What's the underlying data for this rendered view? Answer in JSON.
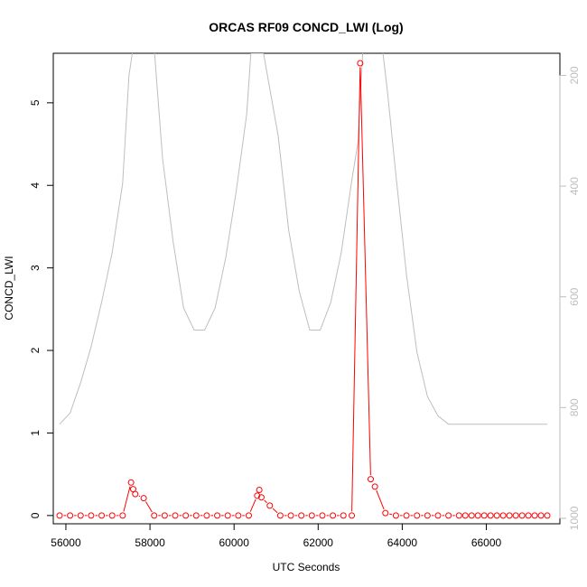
{
  "chart_data": {
    "type": "line",
    "title": "ORCAS RF09 CONCD_LWI (Log)",
    "xlabel": "UTC Seconds",
    "ylabel": "CONCD_LWI",
    "xlim": [
      55700,
      67750
    ],
    "ylim": [
      -0.1,
      5.6
    ],
    "y2lim": [
      1010,
      160
    ],
    "y2_reversed": true,
    "x_ticks": [
      56000,
      58000,
      60000,
      62000,
      64000,
      66000
    ],
    "y_ticks": [
      0,
      1,
      2,
      3,
      4,
      5
    ],
    "y2_ticks": [
      200,
      400,
      600,
      800,
      1000
    ],
    "grid": false,
    "series": [
      {
        "color": "#ff0000",
        "axis": "left",
        "markers": "open-circle",
        "x": [
          55850,
          56100,
          56350,
          56600,
          56850,
          57100,
          57350,
          57550,
          57600,
          57650,
          57850,
          58100,
          58350,
          58600,
          58850,
          59100,
          59350,
          59600,
          59850,
          60100,
          60350,
          60550,
          60600,
          60650,
          60850,
          61100,
          61350,
          61600,
          61850,
          62100,
          62350,
          62600,
          62800,
          63000,
          63250,
          63350,
          63600,
          63850,
          64100,
          64350,
          64600,
          64850,
          65100,
          65350,
          65500,
          65650,
          65800,
          65950,
          66100,
          66250,
          66400,
          66550,
          66700,
          66850,
          67000,
          67150,
          67300,
          67450
        ],
        "y": [
          0,
          0,
          0,
          0,
          0,
          0,
          0,
          0.4,
          0.32,
          0.26,
          0.21,
          0,
          0,
          0,
          0,
          0,
          0,
          0,
          0,
          0,
          0,
          0.24,
          0.31,
          0.22,
          0.12,
          0,
          0,
          0,
          0,
          0,
          0,
          0,
          0,
          5.48,
          0.44,
          0.35,
          0.03,
          0,
          0,
          0,
          0,
          0,
          0,
          0,
          0,
          0,
          0,
          0,
          0,
          0,
          0,
          0,
          0,
          0,
          0,
          0,
          0,
          0
        ]
      },
      {
        "color": "#bebebe",
        "axis": "right",
        "markers": "none",
        "x": [
          55850,
          56100,
          56350,
          56600,
          56850,
          57100,
          57350,
          57500,
          57700,
          58050,
          58300,
          58550,
          58800,
          59050,
          59300,
          59550,
          59800,
          60050,
          60300,
          60400,
          60700,
          61050,
          61300,
          61550,
          61800,
          62050,
          62300,
          62550,
          62800,
          62950,
          63100,
          63450,
          63650,
          63850,
          64100,
          64350,
          64600,
          64850,
          65100,
          65350,
          65600,
          66000,
          66500,
          67000,
          67450
        ],
        "y": [
          830,
          810,
          755,
          690,
          610,
          520,
          395,
          200,
          100,
          100,
          350,
          500,
          620,
          660,
          660,
          620,
          530,
          410,
          270,
          160,
          160,
          310,
          480,
          590,
          660,
          660,
          610,
          520,
          390,
          320,
          100,
          100,
          230,
          380,
          560,
          700,
          780,
          815,
          830,
          830,
          830,
          830,
          830,
          830,
          830
        ]
      }
    ]
  }
}
